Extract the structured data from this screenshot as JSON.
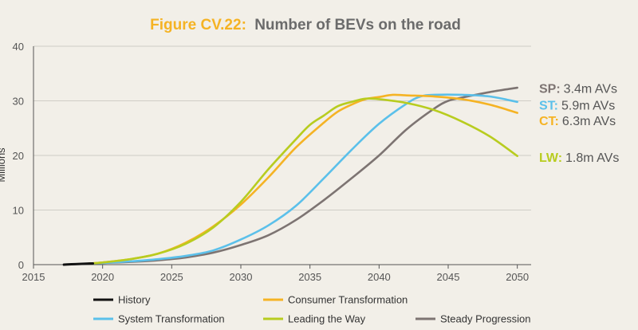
{
  "title": {
    "prefix": "Figure CV.22:",
    "main": "Number of BEVs on the road"
  },
  "colors": {
    "prefix": "#f5b324",
    "main": "#6b6b6b",
    "axis": "#555555",
    "grid": "#cfcdc6"
  },
  "chart_data": {
    "type": "line",
    "title": "Figure CV.22: Number of BEVs on the road",
    "xlabel": "",
    "ylabel": "Millions",
    "xlim": [
      2015,
      2051
    ],
    "ylim": [
      0,
      40
    ],
    "xticks": [
      2015,
      2020,
      2025,
      2030,
      2035,
      2040,
      2045,
      2050
    ],
    "yticks": [
      0,
      10,
      20,
      30,
      40
    ],
    "grid": true,
    "legend_position": "bottom",
    "series": [
      {
        "name": "History",
        "color": "#111111",
        "x": [
          2017.2,
          2017.6,
          2018,
          2018.5,
          2019,
          2019.3
        ],
        "y": [
          0.0,
          0.05,
          0.1,
          0.15,
          0.2,
          0.22
        ]
      },
      {
        "name": "Consumer Transformation",
        "color": "#f5b324",
        "x": [
          2019,
          2020,
          2022,
          2024,
          2026,
          2028,
          2030,
          2032,
          2034,
          2036,
          2037,
          2038,
          2039,
          2040,
          2041,
          2042,
          2044,
          2046,
          2048,
          2050
        ],
        "y": [
          0.2,
          0.4,
          1.0,
          2.0,
          4.0,
          7.0,
          11.0,
          16.0,
          21.5,
          26.0,
          28.0,
          29.3,
          30.3,
          30.7,
          31.1,
          31.0,
          30.8,
          30.3,
          29.3,
          27.8
        ]
      },
      {
        "name": "System Transformation",
        "color": "#5bc0ea",
        "x": [
          2019,
          2020,
          2022,
          2024,
          2026,
          2028,
          2030,
          2032,
          2034,
          2036,
          2038,
          2040,
          2042,
          2043,
          2044,
          2046,
          2048,
          2050
        ],
        "y": [
          0.2,
          0.3,
          0.6,
          1.0,
          1.6,
          2.6,
          4.6,
          7.2,
          10.8,
          15.8,
          21.0,
          25.8,
          29.5,
          30.8,
          31.1,
          31.1,
          30.8,
          29.8
        ]
      },
      {
        "name": "Leading the Way",
        "color": "#b8cc1f",
        "x": [
          2019,
          2020,
          2022,
          2024,
          2026,
          2028,
          2030,
          2032,
          2034,
          2035,
          2036,
          2037,
          2038,
          2039,
          2040,
          2042,
          2044,
          2046,
          2048,
          2050
        ],
        "y": [
          0.2,
          0.4,
          1.0,
          2.0,
          3.8,
          6.8,
          11.5,
          17.5,
          23.0,
          25.6,
          27.3,
          29.0,
          29.8,
          30.4,
          30.3,
          29.6,
          28.3,
          26.2,
          23.5,
          19.9
        ]
      },
      {
        "name": "Steady Progression",
        "color": "#7d7472",
        "x": [
          2019,
          2020,
          2022,
          2024,
          2026,
          2028,
          2030,
          2032,
          2034,
          2036,
          2038,
          2040,
          2042,
          2044,
          2045,
          2046,
          2048,
          2050
        ],
        "y": [
          0.2,
          0.3,
          0.5,
          0.8,
          1.3,
          2.2,
          3.6,
          5.4,
          8.2,
          11.8,
          15.8,
          20.0,
          24.8,
          28.6,
          30.0,
          30.6,
          31.6,
          32.4
        ]
      }
    ],
    "annotations": [
      {
        "prefix": "SP:",
        "text": "3.4m AVs",
        "y": 32.3,
        "color": "#7d7472"
      },
      {
        "prefix": "ST:",
        "text": "5.9m AVs",
        "y": 29.3,
        "color": "#5bc0ea"
      },
      {
        "prefix": "CT:",
        "text": "6.3m AVs",
        "y": 26.4,
        "color": "#f5b324"
      },
      {
        "prefix": "LW:",
        "text": "1.8m AVs",
        "y": 19.7,
        "color": "#b8cc1f"
      }
    ]
  }
}
